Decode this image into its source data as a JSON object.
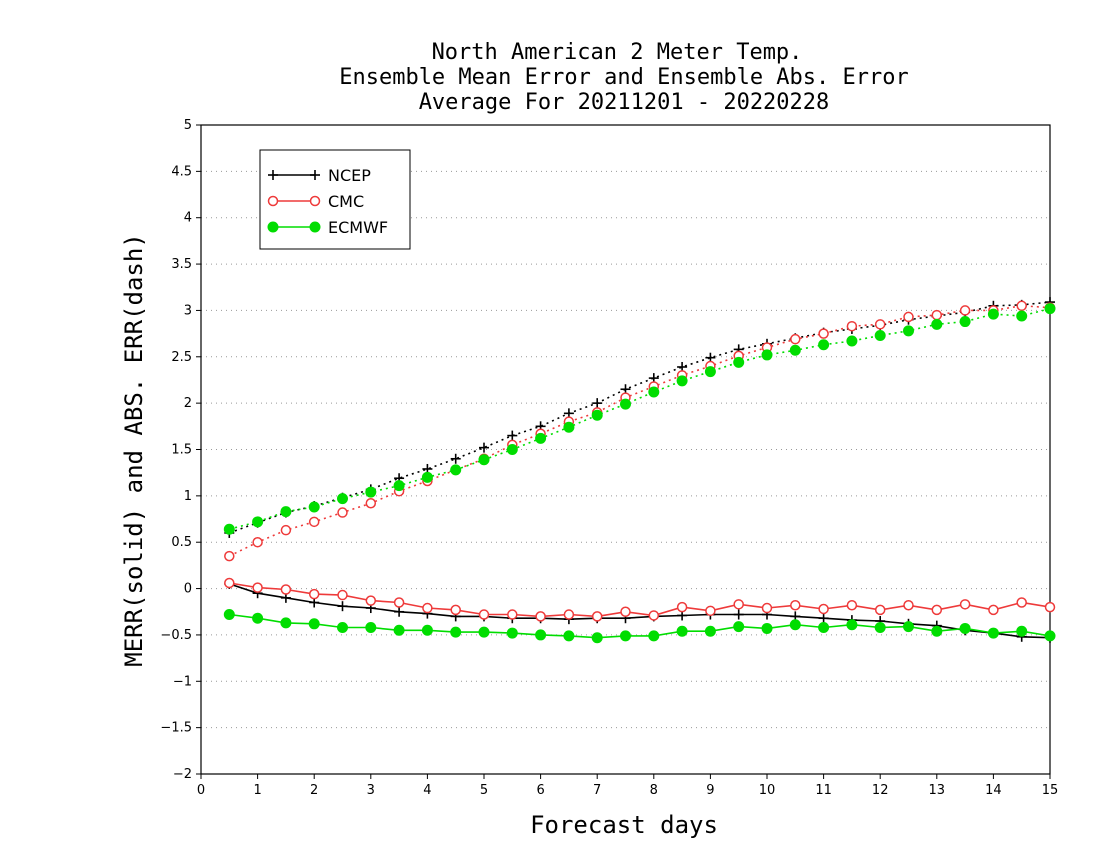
{
  "chart_data": {
    "type": "line",
    "title": [
      "North American 2 Meter Temp.",
      "Ensemble Mean Error and Ensemble Abs. Error",
      "Average For 20211201 - 20220228"
    ],
    "xlabel": "Forecast days",
    "ylabel": "MERR(solid) and ABS. ERR(dash)",
    "xlim": [
      0,
      15
    ],
    "ylim": [
      -2,
      5
    ],
    "xticks": [
      0,
      1,
      2,
      3,
      4,
      5,
      6,
      7,
      8,
      9,
      10,
      11,
      12,
      13,
      14,
      15
    ],
    "yticks": [
      -2,
      -1.5,
      -1,
      -0.5,
      0,
      0.5,
      1,
      1.5,
      2,
      2.5,
      3,
      3.5,
      4,
      4.5,
      5
    ],
    "grid": "horizontal dotted",
    "legend_position": "top-left",
    "x": [
      0.5,
      1,
      1.5,
      2,
      2.5,
      3,
      3.5,
      4,
      4.5,
      5,
      5.5,
      6,
      6.5,
      7,
      7.5,
      8,
      8.5,
      9,
      9.5,
      10,
      10.5,
      11,
      11.5,
      12,
      12.5,
      13,
      13.5,
      14,
      14.5,
      15
    ],
    "series": [
      {
        "name": "NCEP",
        "color": "#000000",
        "marker": "plus",
        "mean_error": [
          0.05,
          -0.05,
          -0.1,
          -0.15,
          -0.19,
          -0.21,
          -0.25,
          -0.27,
          -0.3,
          -0.3,
          -0.32,
          -0.32,
          -0.33,
          -0.32,
          -0.32,
          -0.3,
          -0.29,
          -0.28,
          -0.28,
          -0.28,
          -0.3,
          -0.32,
          -0.34,
          -0.35,
          -0.38,
          -0.4,
          -0.45,
          -0.48,
          -0.52,
          -0.53
        ],
        "abs_error": [
          0.6,
          0.71,
          0.82,
          0.89,
          0.98,
          1.07,
          1.19,
          1.29,
          1.4,
          1.52,
          1.65,
          1.75,
          1.89,
          2.0,
          2.15,
          2.27,
          2.39,
          2.49,
          2.58,
          2.64,
          2.7,
          2.76,
          2.8,
          2.84,
          2.9,
          2.94,
          2.98,
          3.05,
          3.06,
          3.09
        ]
      },
      {
        "name": "CMC",
        "color": "#ee3a3a",
        "marker": "open-circle",
        "mean_error": [
          0.06,
          0.01,
          -0.01,
          -0.06,
          -0.07,
          -0.13,
          -0.15,
          -0.21,
          -0.23,
          -0.28,
          -0.28,
          -0.3,
          -0.28,
          -0.3,
          -0.25,
          -0.29,
          -0.2,
          -0.24,
          -0.17,
          -0.21,
          -0.18,
          -0.22,
          -0.18,
          -0.23,
          -0.18,
          -0.23,
          -0.17,
          -0.23,
          -0.15,
          -0.2
        ],
        "abs_error": [
          0.35,
          0.5,
          0.63,
          0.72,
          0.82,
          0.92,
          1.05,
          1.16,
          1.28,
          1.4,
          1.55,
          1.67,
          1.8,
          1.9,
          2.06,
          2.18,
          2.3,
          2.4,
          2.51,
          2.6,
          2.69,
          2.75,
          2.83,
          2.85,
          2.93,
          2.95,
          3.0,
          3.0,
          3.05,
          3.03
        ]
      },
      {
        "name": "ECMWF",
        "color": "#00dd00",
        "marker": "filled-circle",
        "mean_error": [
          -0.28,
          -0.32,
          -0.37,
          -0.38,
          -0.42,
          -0.42,
          -0.45,
          -0.45,
          -0.47,
          -0.47,
          -0.48,
          -0.5,
          -0.51,
          -0.53,
          -0.51,
          -0.51,
          -0.46,
          -0.46,
          -0.41,
          -0.43,
          -0.39,
          -0.42,
          -0.39,
          -0.42,
          -0.41,
          -0.46,
          -0.43,
          -0.48,
          -0.46,
          -0.51
        ],
        "abs_error": [
          0.64,
          0.72,
          0.83,
          0.88,
          0.97,
          1.04,
          1.11,
          1.2,
          1.28,
          1.39,
          1.5,
          1.62,
          1.74,
          1.87,
          1.99,
          2.12,
          2.24,
          2.34,
          2.44,
          2.52,
          2.57,
          2.63,
          2.67,
          2.73,
          2.78,
          2.85,
          2.88,
          2.96,
          2.94,
          3.02
        ]
      }
    ]
  }
}
